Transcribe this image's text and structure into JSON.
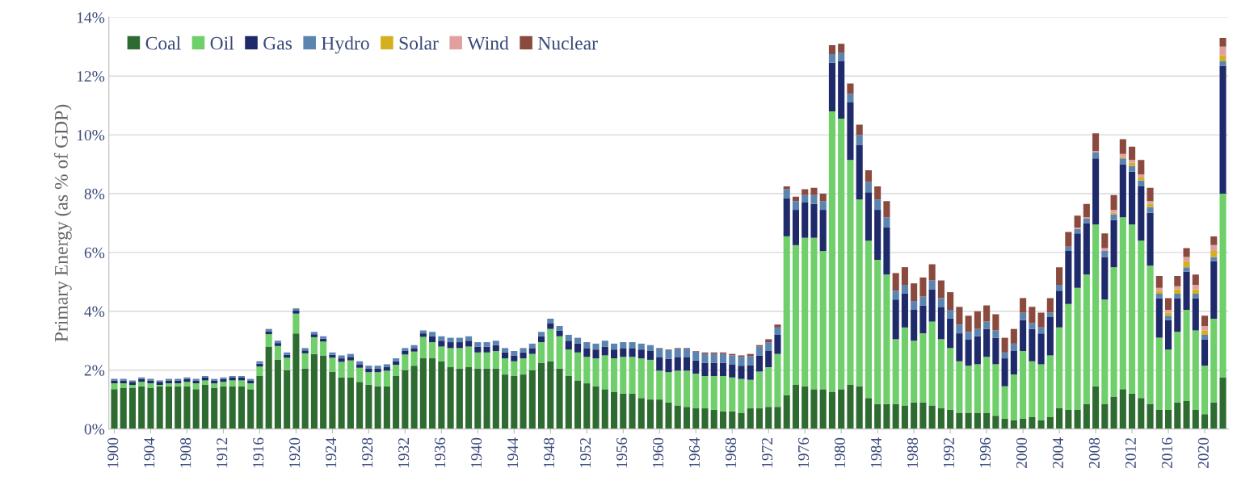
{
  "chart_data": {
    "type": "bar",
    "stacked": true,
    "ylabel": "Primary Energy (as % of GDP)",
    "categories": [
      "1900",
      null,
      null,
      null,
      "1904",
      null,
      null,
      null,
      "1908",
      null,
      null,
      null,
      "1912",
      null,
      null,
      null,
      "1916",
      null,
      null,
      null,
      "1920",
      null,
      null,
      null,
      "1924",
      null,
      null,
      null,
      "1928",
      null,
      null,
      null,
      "1932",
      null,
      null,
      null,
      "1936",
      null,
      null,
      null,
      "1940",
      null,
      null,
      null,
      "1944",
      null,
      null,
      null,
      "1948",
      null,
      null,
      null,
      "1952",
      null,
      null,
      null,
      "1956",
      null,
      null,
      null,
      "1960",
      null,
      null,
      null,
      "1964",
      null,
      null,
      null,
      "1968",
      null,
      null,
      null,
      "1972",
      null,
      null,
      null,
      "1976",
      null,
      null,
      null,
      "1980",
      null,
      null,
      null,
      "1984",
      null,
      null,
      null,
      "1988",
      null,
      null,
      null,
      "1992",
      null,
      null,
      null,
      "1996",
      null,
      null,
      null,
      "2000",
      null,
      null,
      null,
      "2004",
      null,
      null,
      null,
      "2008",
      null,
      null,
      null,
      "2012",
      null,
      null,
      null,
      "2016",
      null,
      null,
      null,
      "2020",
      null,
      null
    ],
    "ylim": [
      0,
      14
    ],
    "yticks": [
      {
        "value": 0,
        "label": "0%"
      },
      {
        "value": 2,
        "label": "2%"
      },
      {
        "value": 4,
        "label": "4%"
      },
      {
        "value": 6,
        "label": "6%"
      },
      {
        "value": 8,
        "label": "8%"
      },
      {
        "value": 10,
        "label": "10%"
      },
      {
        "value": 12,
        "label": "12%"
      },
      {
        "value": 14,
        "label": "14%"
      }
    ],
    "grid": "y",
    "legend": "top left",
    "series": [
      {
        "name": "Coal",
        "color": "#2e6b30",
        "values": [
          1.35,
          1.4,
          1.4,
          1.45,
          1.4,
          1.45,
          1.45,
          1.45,
          1.45,
          1.35,
          1.5,
          1.4,
          1.45,
          1.45,
          1.45,
          1.35,
          1.8,
          2.8,
          2.35,
          2.0,
          3.25,
          2.05,
          2.55,
          2.5,
          1.95,
          1.75,
          1.75,
          1.6,
          1.5,
          1.45,
          1.45,
          1.8,
          2.0,
          2.15,
          2.4,
          2.4,
          2.3,
          2.1,
          2.05,
          2.1,
          2.05,
          2.05,
          2.05,
          1.85,
          1.8,
          1.85,
          2.0,
          2.25,
          2.3,
          2.05,
          1.8,
          1.65,
          1.55,
          1.45,
          1.35,
          1.25,
          1.2,
          1.2,
          1.05,
          1.0,
          1.0,
          0.9,
          0.8,
          0.75,
          0.7,
          0.7,
          0.65,
          0.6,
          0.6,
          0.55,
          0.7,
          0.7,
          0.75,
          0.75,
          1.15,
          1.5,
          1.45,
          1.35,
          1.35,
          1.25,
          1.35,
          1.5,
          1.45,
          1.05,
          0.85,
          0.85,
          0.85,
          0.8,
          0.9,
          0.9,
          0.8,
          0.7,
          0.65,
          0.55,
          0.55,
          0.55,
          0.55,
          0.45,
          0.35,
          0.3,
          0.35,
          0.4,
          0.3,
          0.4,
          0.7,
          0.65,
          0.65,
          0.85,
          1.45,
          0.85,
          1.1,
          1.35,
          1.2,
          1.05,
          0.85,
          0.65,
          0.65,
          0.9,
          0.95,
          0.65,
          0.5,
          0.9,
          1.75
        ]
      },
      {
        "name": "Oil",
        "color": "#6fcf6a",
        "values": [
          0.2,
          0.15,
          0.1,
          0.15,
          0.15,
          0.05,
          0.1,
          0.1,
          0.15,
          0.2,
          0.15,
          0.15,
          0.15,
          0.2,
          0.2,
          0.2,
          0.32,
          0.42,
          0.47,
          0.42,
          0.67,
          0.52,
          0.57,
          0.47,
          0.47,
          0.53,
          0.58,
          0.48,
          0.43,
          0.48,
          0.53,
          0.38,
          0.53,
          0.48,
          0.73,
          0.55,
          0.5,
          0.65,
          0.7,
          0.7,
          0.55,
          0.55,
          0.6,
          0.55,
          0.5,
          0.55,
          0.55,
          0.7,
          1.1,
          1.1,
          0.9,
          0.95,
          0.9,
          0.95,
          1.15,
          1.15,
          1.25,
          1.25,
          1.35,
          1.35,
          0.98,
          1.03,
          1.18,
          1.23,
          1.18,
          1.1,
          1.15,
          1.2,
          1.15,
          1.15,
          0.97,
          1.25,
          1.35,
          1.8,
          5.4,
          4.75,
          5.05,
          5.15,
          4.7,
          9.55,
          9.2,
          7.65,
          6.35,
          5.35,
          4.9,
          4.4,
          2.2,
          2.65,
          2.1,
          2.35,
          2.85,
          2.35,
          2.1,
          1.75,
          1.6,
          1.65,
          1.9,
          1.75,
          1.1,
          1.55,
          2.3,
          1.9,
          1.9,
          2.1,
          2.75,
          3.6,
          4.15,
          4.4,
          5.5,
          3.55,
          4.4,
          5.85,
          5.75,
          5.35,
          4.7,
          2.45,
          2.05,
          2.4,
          3.1,
          2.7,
          1.65,
          2.85,
          6.25
        ]
      },
      {
        "name": "Gas",
        "color": "#1f2a6b",
        "values": [
          0.1,
          0.1,
          0.1,
          0.1,
          0.1,
          0.1,
          0.1,
          0.1,
          0.1,
          0.1,
          0.1,
          0.1,
          0.1,
          0.1,
          0.1,
          0.1,
          0.1,
          0.1,
          0.1,
          0.1,
          0.1,
          0.1,
          0.1,
          0.1,
          0.1,
          0.12,
          0.12,
          0.12,
          0.12,
          0.12,
          0.12,
          0.12,
          0.12,
          0.12,
          0.12,
          0.2,
          0.2,
          0.2,
          0.2,
          0.2,
          0.2,
          0.2,
          0.2,
          0.2,
          0.2,
          0.2,
          0.2,
          0.2,
          0.2,
          0.2,
          0.3,
          0.3,
          0.3,
          0.3,
          0.3,
          0.3,
          0.3,
          0.3,
          0.3,
          0.3,
          0.45,
          0.45,
          0.45,
          0.45,
          0.45,
          0.45,
          0.45,
          0.45,
          0.45,
          0.45,
          0.5,
          0.55,
          0.55,
          0.65,
          1.3,
          1.2,
          1.2,
          1.15,
          1.4,
          1.65,
          1.95,
          1.95,
          1.85,
          1.65,
          1.7,
          1.6,
          1.35,
          1.15,
          1.05,
          0.95,
          1.1,
          1.1,
          1.0,
          0.95,
          0.9,
          0.95,
          0.95,
          0.9,
          0.95,
          0.8,
          1.05,
          1.1,
          1.05,
          1.3,
          1.25,
          1.8,
          1.85,
          1.75,
          2.25,
          1.45,
          1.6,
          1.8,
          1.8,
          1.85,
          1.8,
          1.35,
          1.0,
          1.15,
          1.3,
          1.1,
          0.9,
          1.95,
          4.35
        ]
      },
      {
        "name": "Hydro",
        "color": "#5b84b1",
        "values": [
          0.05,
          0.05,
          0.05,
          0.05,
          0.05,
          0.05,
          0.05,
          0.05,
          0.05,
          0.05,
          0.05,
          0.05,
          0.05,
          0.05,
          0.05,
          0.05,
          0.08,
          0.08,
          0.08,
          0.08,
          0.08,
          0.08,
          0.08,
          0.08,
          0.08,
          0.1,
          0.1,
          0.1,
          0.1,
          0.1,
          0.1,
          0.1,
          0.1,
          0.1,
          0.1,
          0.15,
          0.15,
          0.15,
          0.15,
          0.15,
          0.15,
          0.15,
          0.15,
          0.15,
          0.15,
          0.15,
          0.15,
          0.15,
          0.15,
          0.15,
          0.2,
          0.2,
          0.2,
          0.2,
          0.2,
          0.2,
          0.2,
          0.2,
          0.2,
          0.2,
          0.3,
          0.3,
          0.3,
          0.3,
          0.3,
          0.3,
          0.3,
          0.3,
          0.3,
          0.3,
          0.3,
          0.3,
          0.3,
          0.25,
          0.3,
          0.3,
          0.25,
          0.3,
          0.3,
          0.3,
          0.3,
          0.3,
          0.35,
          0.35,
          0.35,
          0.35,
          0.3,
          0.3,
          0.3,
          0.3,
          0.3,
          0.3,
          0.3,
          0.3,
          0.25,
          0.25,
          0.25,
          0.25,
          0.2,
          0.25,
          0.25,
          0.2,
          0.2,
          0.15,
          0.2,
          0.15,
          0.15,
          0.15,
          0.2,
          0.2,
          0.2,
          0.2,
          0.2,
          0.2,
          0.2,
          0.15,
          0.15,
          0.15,
          0.15,
          0.15,
          0.15,
          0.15,
          0.15
        ]
      },
      {
        "name": "Solar",
        "color": "#d4b020",
        "values": [
          0,
          0,
          0,
          0,
          0,
          0,
          0,
          0,
          0,
          0,
          0,
          0,
          0,
          0,
          0,
          0,
          0,
          0,
          0,
          0,
          0,
          0,
          0,
          0,
          0,
          0,
          0,
          0,
          0,
          0,
          0,
          0,
          0,
          0,
          0,
          0,
          0,
          0,
          0,
          0,
          0,
          0,
          0,
          0,
          0,
          0,
          0,
          0,
          0,
          0,
          0,
          0,
          0,
          0,
          0,
          0,
          0,
          0,
          0,
          0,
          0,
          0,
          0,
          0,
          0,
          0,
          0,
          0,
          0,
          0,
          0,
          0,
          0,
          0,
          0,
          0,
          0,
          0,
          0,
          0,
          0,
          0,
          0,
          0,
          0,
          0,
          0,
          0,
          0,
          0,
          0,
          0,
          0,
          0,
          0,
          0,
          0,
          0,
          0,
          0,
          0,
          0,
          0,
          0,
          0,
          0,
          0,
          0,
          0,
          0,
          0.05,
          0.05,
          0.1,
          0.1,
          0.1,
          0.1,
          0.1,
          0.15,
          0.2,
          0.15,
          0.15,
          0.2,
          0.2
        ]
      },
      {
        "name": "Wind",
        "color": "#e0a0a0",
        "values": [
          0,
          0,
          0,
          0,
          0,
          0,
          0,
          0,
          0,
          0,
          0,
          0,
          0,
          0,
          0,
          0,
          0,
          0,
          0,
          0,
          0,
          0,
          0,
          0,
          0,
          0,
          0,
          0,
          0,
          0,
          0,
          0,
          0,
          0,
          0,
          0,
          0,
          0,
          0,
          0,
          0,
          0,
          0,
          0,
          0,
          0,
          0,
          0,
          0,
          0,
          0,
          0,
          0,
          0,
          0,
          0,
          0,
          0,
          0,
          0,
          0,
          0,
          0,
          0,
          0,
          0,
          0,
          0,
          0,
          0,
          0,
          0,
          0,
          0,
          0,
          0,
          0,
          0,
          0,
          0,
          0,
          0,
          0,
          0,
          0,
          0,
          0,
          0,
          0,
          0,
          0,
          0,
          0,
          0,
          0,
          0,
          0,
          0,
          0,
          0,
          0,
          0,
          0,
          0,
          0,
          0,
          0.05,
          0.05,
          0.05,
          0.1,
          0.1,
          0.1,
          0.1,
          0.1,
          0.1,
          0.1,
          0.1,
          0.1,
          0.15,
          0.15,
          0.15,
          0.2,
          0.3
        ]
      },
      {
        "name": "Nuclear",
        "color": "#8b4a3e",
        "values": [
          0,
          0,
          0,
          0,
          0,
          0,
          0,
          0,
          0,
          0,
          0,
          0,
          0,
          0,
          0,
          0,
          0,
          0,
          0,
          0,
          0,
          0,
          0,
          0,
          0,
          0,
          0,
          0,
          0,
          0,
          0,
          0,
          0,
          0,
          0,
          0,
          0,
          0,
          0,
          0,
          0,
          0,
          0,
          0,
          0,
          0,
          0,
          0,
          0,
          0,
          0,
          0,
          0,
          0,
          0,
          0,
          0,
          0,
          0,
          0,
          0.02,
          0.02,
          0.02,
          0.02,
          0.02,
          0.05,
          0.05,
          0.05,
          0.05,
          0.05,
          0.08,
          0.05,
          0.1,
          0.1,
          0.1,
          0.15,
          0.2,
          0.25,
          0.25,
          0.3,
          0.3,
          0.35,
          0.35,
          0.4,
          0.45,
          0.55,
          0.6,
          0.6,
          0.6,
          0.65,
          0.55,
          0.6,
          0.6,
          0.6,
          0.55,
          0.6,
          0.55,
          0.55,
          0.5,
          0.5,
          0.5,
          0.55,
          0.5,
          0.5,
          0.6,
          0.5,
          0.4,
          0.45,
          0.6,
          0.5,
          0.5,
          0.5,
          0.45,
          0.5,
          0.45,
          0.4,
          0.4,
          0.35,
          0.3,
          0.35,
          0.35,
          0.3,
          0.3
        ]
      }
    ]
  }
}
